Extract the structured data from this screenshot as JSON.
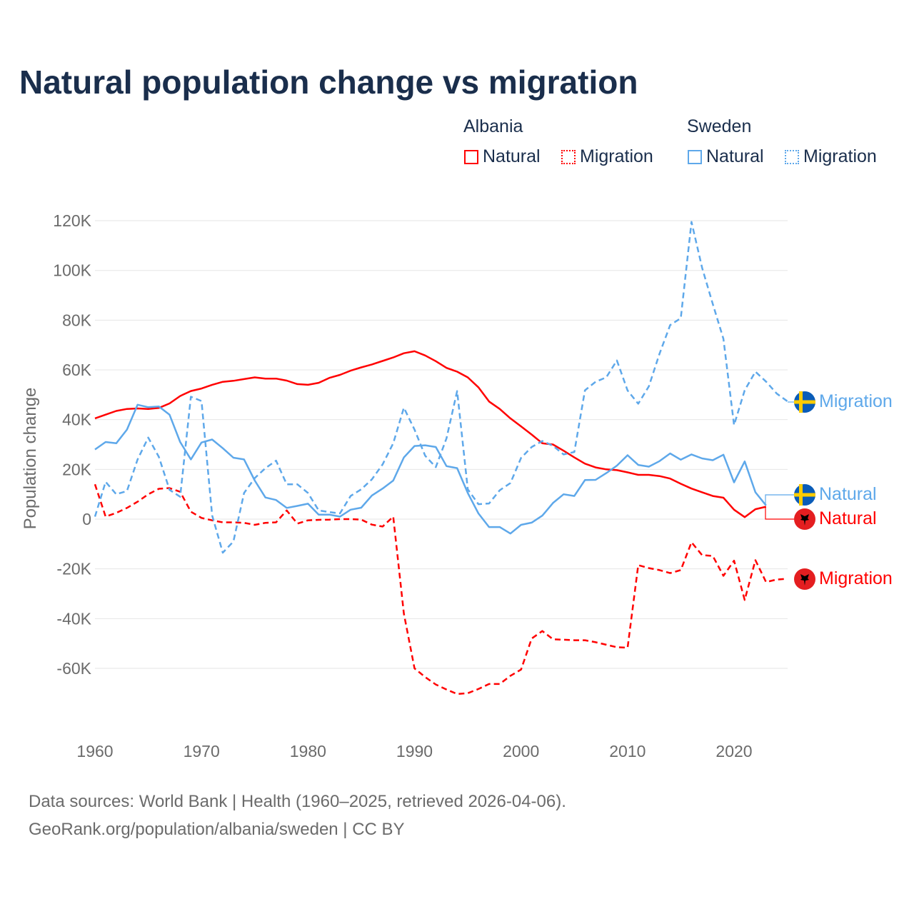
{
  "title": "Natural population change vs migration",
  "legend": {
    "groups": [
      {
        "name": "Albania",
        "items": [
          {
            "label": "Natural",
            "color": "#ff0000",
            "style": "solid"
          },
          {
            "label": "Migration",
            "color": "#ff0000",
            "style": "dotted"
          }
        ]
      },
      {
        "name": "Sweden",
        "items": [
          {
            "label": "Natural",
            "color": "#5ea8ea",
            "style": "solid"
          },
          {
            "label": "Migration",
            "color": "#5ea8ea",
            "style": "dotted"
          }
        ]
      }
    ]
  },
  "footer": {
    "line1": "Data sources: World Bank | Health (1960–2025, retrieved 2026-04-06).",
    "line2": "GeoRank.org/population/albania/sweden | CC BY"
  },
  "end_labels": {
    "sweden_migration": "Migration",
    "sweden_natural": "Natural",
    "albania_natural": "Natural",
    "albania_migration": "Migration"
  },
  "chart_data": {
    "type": "line",
    "title": "Natural population change vs migration",
    "xlabel": "",
    "ylabel": "Population change",
    "xlim": [
      1960,
      2025
    ],
    "ylim": [
      -80000,
      125000
    ],
    "x_ticks": [
      1960,
      1970,
      1980,
      1990,
      2000,
      2010,
      2020
    ],
    "x_tick_labels": [
      "1960",
      "1970",
      "1980",
      "1990",
      "2000",
      "2010",
      "2020"
    ],
    "y_ticks": [
      120000,
      100000,
      80000,
      60000,
      40000,
      20000,
      0,
      -20000,
      -40000,
      -60000
    ],
    "y_tick_labels": [
      "120K",
      "100K",
      "80K",
      "60K",
      "40K",
      "20K",
      "0",
      "-20K",
      "-40K",
      "-60K"
    ],
    "grid": true,
    "legend_position": "top-right",
    "series": [
      {
        "name": "Albania Natural",
        "color": "#ff0000",
        "dash": false,
        "start_year": 1960,
        "values_k": [
          40.5,
          42,
          43.5,
          44.3,
          44.5,
          44.3,
          44.7,
          46.5,
          49.5,
          51.5,
          52.5,
          54,
          55.2,
          55.6,
          56.3,
          57,
          56.5,
          56.5,
          55.7,
          54.3,
          54,
          54.8,
          56.8,
          58,
          59.7,
          61,
          62.2,
          63.6,
          65,
          66.7,
          67.5,
          65.8,
          63.5,
          60.8,
          59.3,
          57,
          53,
          47.3,
          44.3,
          40.5,
          37.3,
          34,
          30.5,
          30,
          27.5,
          24.8,
          22.3,
          20.8,
          20,
          19.7,
          18.8,
          17.8,
          17.8,
          17.3,
          16.3,
          14.2,
          12.3,
          10.8,
          9.3,
          8.6,
          3.8,
          0.8,
          4,
          5
        ]
      },
      {
        "name": "Albania Migration",
        "color": "#ff0000",
        "dash": true,
        "start_year": 1960,
        "values_k": [
          14,
          1,
          2.5,
          4.5,
          7,
          10,
          12.2,
          12.5,
          11,
          3,
          0.5,
          -0.5,
          -1.3,
          -1.3,
          -1.5,
          -2.3,
          -1.5,
          -1.3,
          3.5,
          -1.8,
          -0.5,
          -0.3,
          -0.2,
          0,
          0,
          -0.2,
          -2.2,
          -3,
          1,
          -38,
          -60,
          -63.5,
          -66.5,
          -68.5,
          -70.3,
          -70,
          -68.3,
          -66.3,
          -66.3,
          -63,
          -60.5,
          -48,
          -45,
          -48.3,
          -48.5,
          -48.7,
          -48.7,
          -49.5,
          -50.5,
          -51.5,
          -51.7,
          -18.5,
          -19.7,
          -20.5,
          -21.7,
          -20.5,
          -9.3,
          -14.5,
          -14.8,
          -22.8,
          -16.7,
          -32.5,
          -16.5,
          -25.3,
          -24.3,
          -24
        ]
      },
      {
        "name": "Sweden Natural",
        "color": "#5ea8ea",
        "dash": false,
        "start_year": 1960,
        "values_k": [
          28,
          31,
          30.5,
          36,
          46,
          45,
          45.3,
          42,
          31,
          24,
          30.8,
          32,
          28.5,
          24.7,
          24,
          15.5,
          8.7,
          7.7,
          4.5,
          5.3,
          6.2,
          1.8,
          1.8,
          1,
          3.8,
          4.6,
          9.5,
          12.3,
          15.5,
          24.8,
          29.4,
          29.7,
          29,
          21.3,
          20.5,
          10.5,
          2.3,
          -3.2,
          -3.2,
          -5.8,
          -2.3,
          -1.4,
          1.4,
          6.5,
          10,
          9.3,
          15.7,
          15.8,
          18.5,
          21.5,
          25.7,
          21.8,
          21.1,
          23.3,
          26.4,
          23.9,
          26,
          24.4,
          23.7,
          25.9,
          14.8,
          23.2,
          10.8,
          5.5
        ]
      },
      {
        "name": "Sweden Migration",
        "color": "#5ea8ea",
        "dash": true,
        "start_year": 1960,
        "values_k": [
          1,
          15,
          10,
          11.3,
          24,
          32.8,
          25,
          11.8,
          9,
          49.2,
          47.5,
          1.5,
          -13.5,
          -9,
          10.5,
          16.5,
          20.5,
          23.5,
          14,
          14,
          10.5,
          3.5,
          2.8,
          2.3,
          9.3,
          12,
          16,
          22,
          30.5,
          44.8,
          36,
          25.5,
          20.9,
          32.5,
          51.5,
          12,
          6,
          6.3,
          11.6,
          14.5,
          24.6,
          29,
          31.4,
          29.5,
          26,
          27,
          51.8,
          55.2,
          57,
          63.8,
          51.7,
          46.4,
          53.4,
          66.5,
          78,
          80.8,
          119.5,
          101,
          86.5,
          72.5,
          37.8,
          51.8,
          59.3,
          55.3,
          50.5,
          47.4
        ]
      }
    ]
  }
}
